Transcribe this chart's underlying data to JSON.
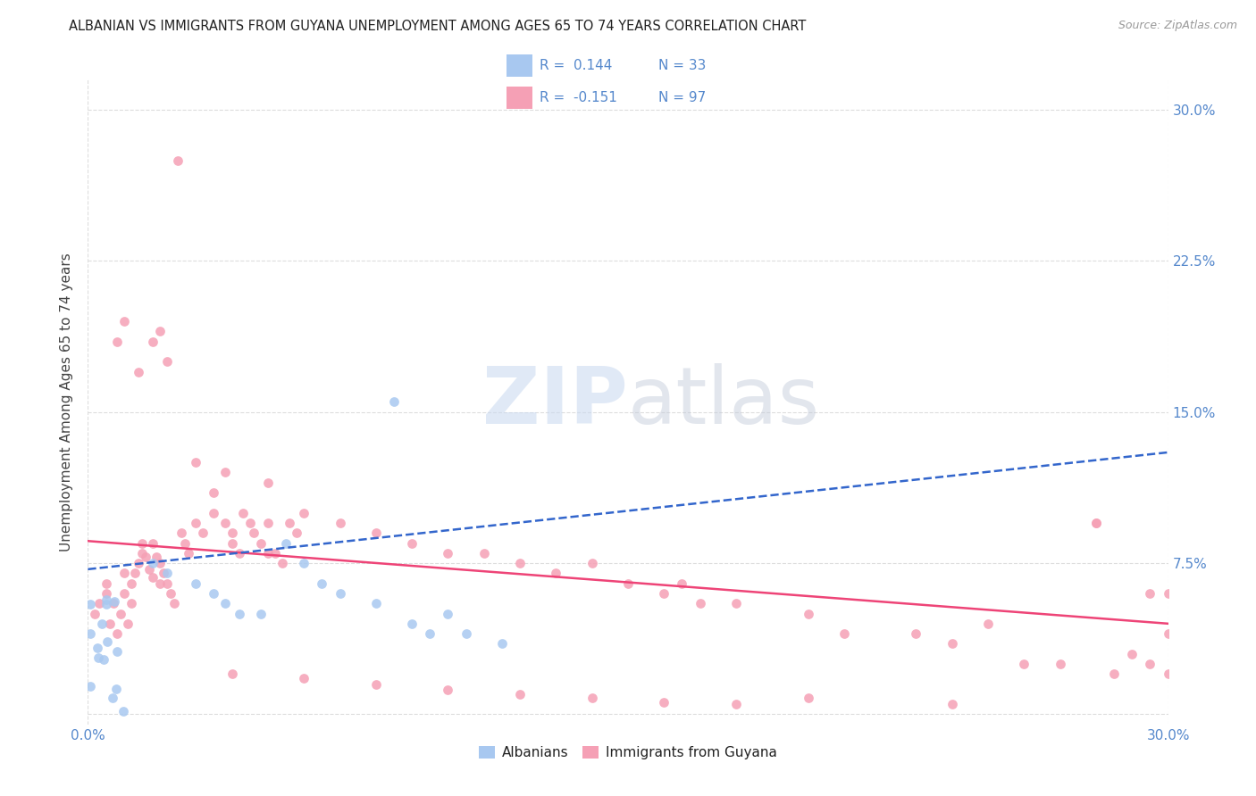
{
  "title": "ALBANIAN VS IMMIGRANTS FROM GUYANA UNEMPLOYMENT AMONG AGES 65 TO 74 YEARS CORRELATION CHART",
  "source": "Source: ZipAtlas.com",
  "ylabel": "Unemployment Among Ages 65 to 74 years",
  "xlim": [
    0.0,
    0.3
  ],
  "ylim": [
    -0.005,
    0.315
  ],
  "r_albanian": 0.144,
  "n_albanian": 33,
  "r_guyana": -0.151,
  "n_guyana": 97,
  "watermark_zip": "ZIP",
  "watermark_atlas": "atlas",
  "legend_albanian": "Albanians",
  "legend_guyana": "Immigrants from Guyana",
  "albanian_color": "#a8c8f0",
  "guyana_color": "#f5a0b5",
  "albanian_line_color": "#3366cc",
  "guyana_line_color": "#ee4477",
  "title_fontsize": 10.5,
  "source_fontsize": 9,
  "tick_color": "#5588cc",
  "grid_color": "#dddddd",
  "alb_line_x0": 0.0,
  "alb_line_x1": 0.3,
  "alb_line_y0": 0.072,
  "alb_line_y1": 0.13,
  "guy_line_x0": 0.0,
  "guy_line_x1": 0.3,
  "guy_line_y0": 0.086,
  "guy_line_y1": 0.045
}
